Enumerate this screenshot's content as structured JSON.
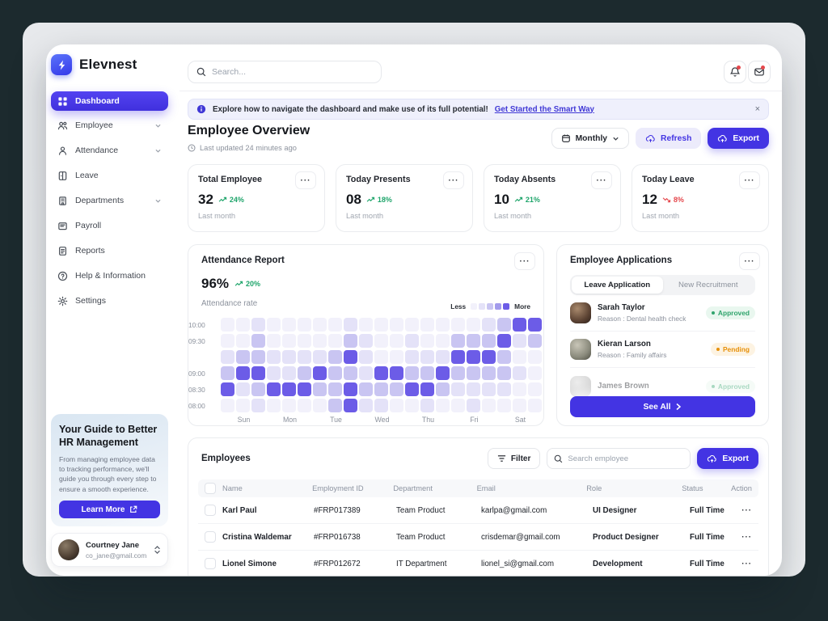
{
  "app": {
    "name": "Elevnest"
  },
  "colors": {
    "primary": "#4334E3",
    "green": "#1FA56B",
    "red": "#E5484D",
    "orange": "#E79009",
    "link": "#4038D6"
  },
  "sidebar": {
    "items": [
      {
        "label": "Dashboard",
        "icon": "grid-icon",
        "active": true,
        "chevron": false
      },
      {
        "label": "Employee",
        "icon": "people-icon",
        "active": false,
        "chevron": true
      },
      {
        "label": "Attendance",
        "icon": "person-icon",
        "active": false,
        "chevron": true
      },
      {
        "label": "Leave",
        "icon": "leave-icon",
        "active": false,
        "chevron": false
      },
      {
        "label": "Departments",
        "icon": "building-icon",
        "active": false,
        "chevron": true
      },
      {
        "label": "Payroll",
        "icon": "payroll-icon",
        "active": false,
        "chevron": false
      },
      {
        "label": "Reports",
        "icon": "report-icon",
        "active": false,
        "chevron": false
      },
      {
        "label": "Help & Information",
        "icon": "help-icon",
        "active": false,
        "chevron": false
      },
      {
        "label": "Settings",
        "icon": "settings-icon",
        "active": false,
        "chevron": false
      }
    ],
    "promo": {
      "title": "Your Guide to Better HR Management",
      "body": "From managing employee data to tracking performance, we'll guide you through every step to ensure a smooth experience.",
      "cta": "Learn More"
    },
    "user": {
      "name": "Courtney Jane",
      "email": "co_jane@gmail.com"
    }
  },
  "topbar": {
    "search_placeholder": "Search..."
  },
  "banner": {
    "text": "Explore how to navigate the dashboard and make use of its full potential!",
    "link": "Get Started the Smart Way",
    "close": "×"
  },
  "header": {
    "title": "Employee Overview",
    "updated": "Last updated 24 minutes ago",
    "period": "Monthly",
    "refresh": "Refresh",
    "export": "Export"
  },
  "stats": [
    {
      "label": "Total Employee",
      "value": "32",
      "trend": "24%",
      "dir": "up",
      "sub": "Last month"
    },
    {
      "label": "Today Presents",
      "value": "08",
      "trend": "18%",
      "dir": "up",
      "sub": "Last month"
    },
    {
      "label": "Today Absents",
      "value": "10",
      "trend": "21%",
      "dir": "up",
      "sub": "Last month"
    },
    {
      "label": "Today Leave",
      "value": "12",
      "trend": "8%",
      "dir": "down",
      "sub": "Last month"
    }
  ],
  "attendance": {
    "title": "Attendance Report",
    "value": "96%",
    "trend": "20%",
    "sub": "Attendance rate",
    "legend_less": "Less",
    "legend_more": "More",
    "chart_data": {
      "type": "heatmap",
      "title": "Attendance Report",
      "x_labels": [
        "Sun",
        "Mon",
        "Tue",
        "Wed",
        "Thu",
        "Fri",
        "Sat"
      ],
      "cols_per_day": 3,
      "y_labels": [
        "10:00",
        "09:30",
        "",
        "09:00",
        "08:30",
        "08:00"
      ],
      "levels": [
        "#F2F1FB",
        "#E4E2F8",
        "#C9C5F2",
        "#A39BEC",
        "#6C5CE7"
      ],
      "grid": [
        [
          0,
          0,
          1,
          0,
          0,
          0,
          0,
          0,
          1,
          0,
          0,
          0,
          0,
          0,
          0,
          0,
          0,
          1,
          2,
          4,
          4
        ],
        [
          0,
          0,
          2,
          0,
          0,
          0,
          0,
          0,
          2,
          1,
          0,
          0,
          1,
          0,
          0,
          2,
          2,
          2,
          4,
          1,
          2
        ],
        [
          1,
          2,
          2,
          1,
          1,
          1,
          1,
          2,
          4,
          1,
          0,
          0,
          1,
          1,
          1,
          4,
          4,
          4,
          2,
          0,
          0
        ],
        [
          2,
          4,
          4,
          1,
          1,
          2,
          4,
          2,
          2,
          1,
          4,
          4,
          2,
          2,
          4,
          2,
          2,
          2,
          2,
          1,
          0
        ],
        [
          4,
          1,
          2,
          4,
          4,
          4,
          2,
          2,
          4,
          2,
          2,
          2,
          4,
          4,
          2,
          1,
          1,
          1,
          1,
          0,
          0
        ],
        [
          0,
          0,
          1,
          0,
          0,
          0,
          0,
          2,
          4,
          1,
          1,
          0,
          0,
          1,
          0,
          0,
          1,
          0,
          0,
          0,
          0
        ]
      ]
    }
  },
  "applications": {
    "title": "Employee Applications",
    "tabs": [
      "Leave Application",
      "New Recruitment"
    ],
    "active_tab": 0,
    "items": [
      {
        "name": "Sarah Taylor",
        "reason": "Reason : Dental health check",
        "status": "Approved",
        "faded": false
      },
      {
        "name": "Kieran Larson",
        "reason": "Reason : Family affairs",
        "status": "Pending",
        "faded": false
      },
      {
        "name": "James Brown",
        "reason": "",
        "status": "Approved",
        "faded": true
      }
    ],
    "see_all": "See All"
  },
  "employees": {
    "title": "Employees",
    "filter": "Filter",
    "search_placeholder": "Search employee",
    "export": "Export",
    "columns": [
      "Name",
      "Employment ID",
      "Department",
      "Email",
      "Role",
      "Status",
      "Action"
    ],
    "rows": [
      {
        "name": "Karl Paul",
        "id": "#FRP017389",
        "dept": "Team Product",
        "email": "karlpa@gmail.com",
        "role": "UI Designer",
        "status": "Full Time"
      },
      {
        "name": "Cristina Waldemar",
        "id": "#FRP016738",
        "dept": "Team Product",
        "email": "crisdemar@gmail.com",
        "role": "Product Designer",
        "status": "Full Time"
      },
      {
        "name": "Lionel Simone",
        "id": "#FRP012672",
        "dept": "IT Department",
        "email": "lionel_si@gmail.com",
        "role": "Development",
        "status": "Full Time"
      }
    ]
  }
}
